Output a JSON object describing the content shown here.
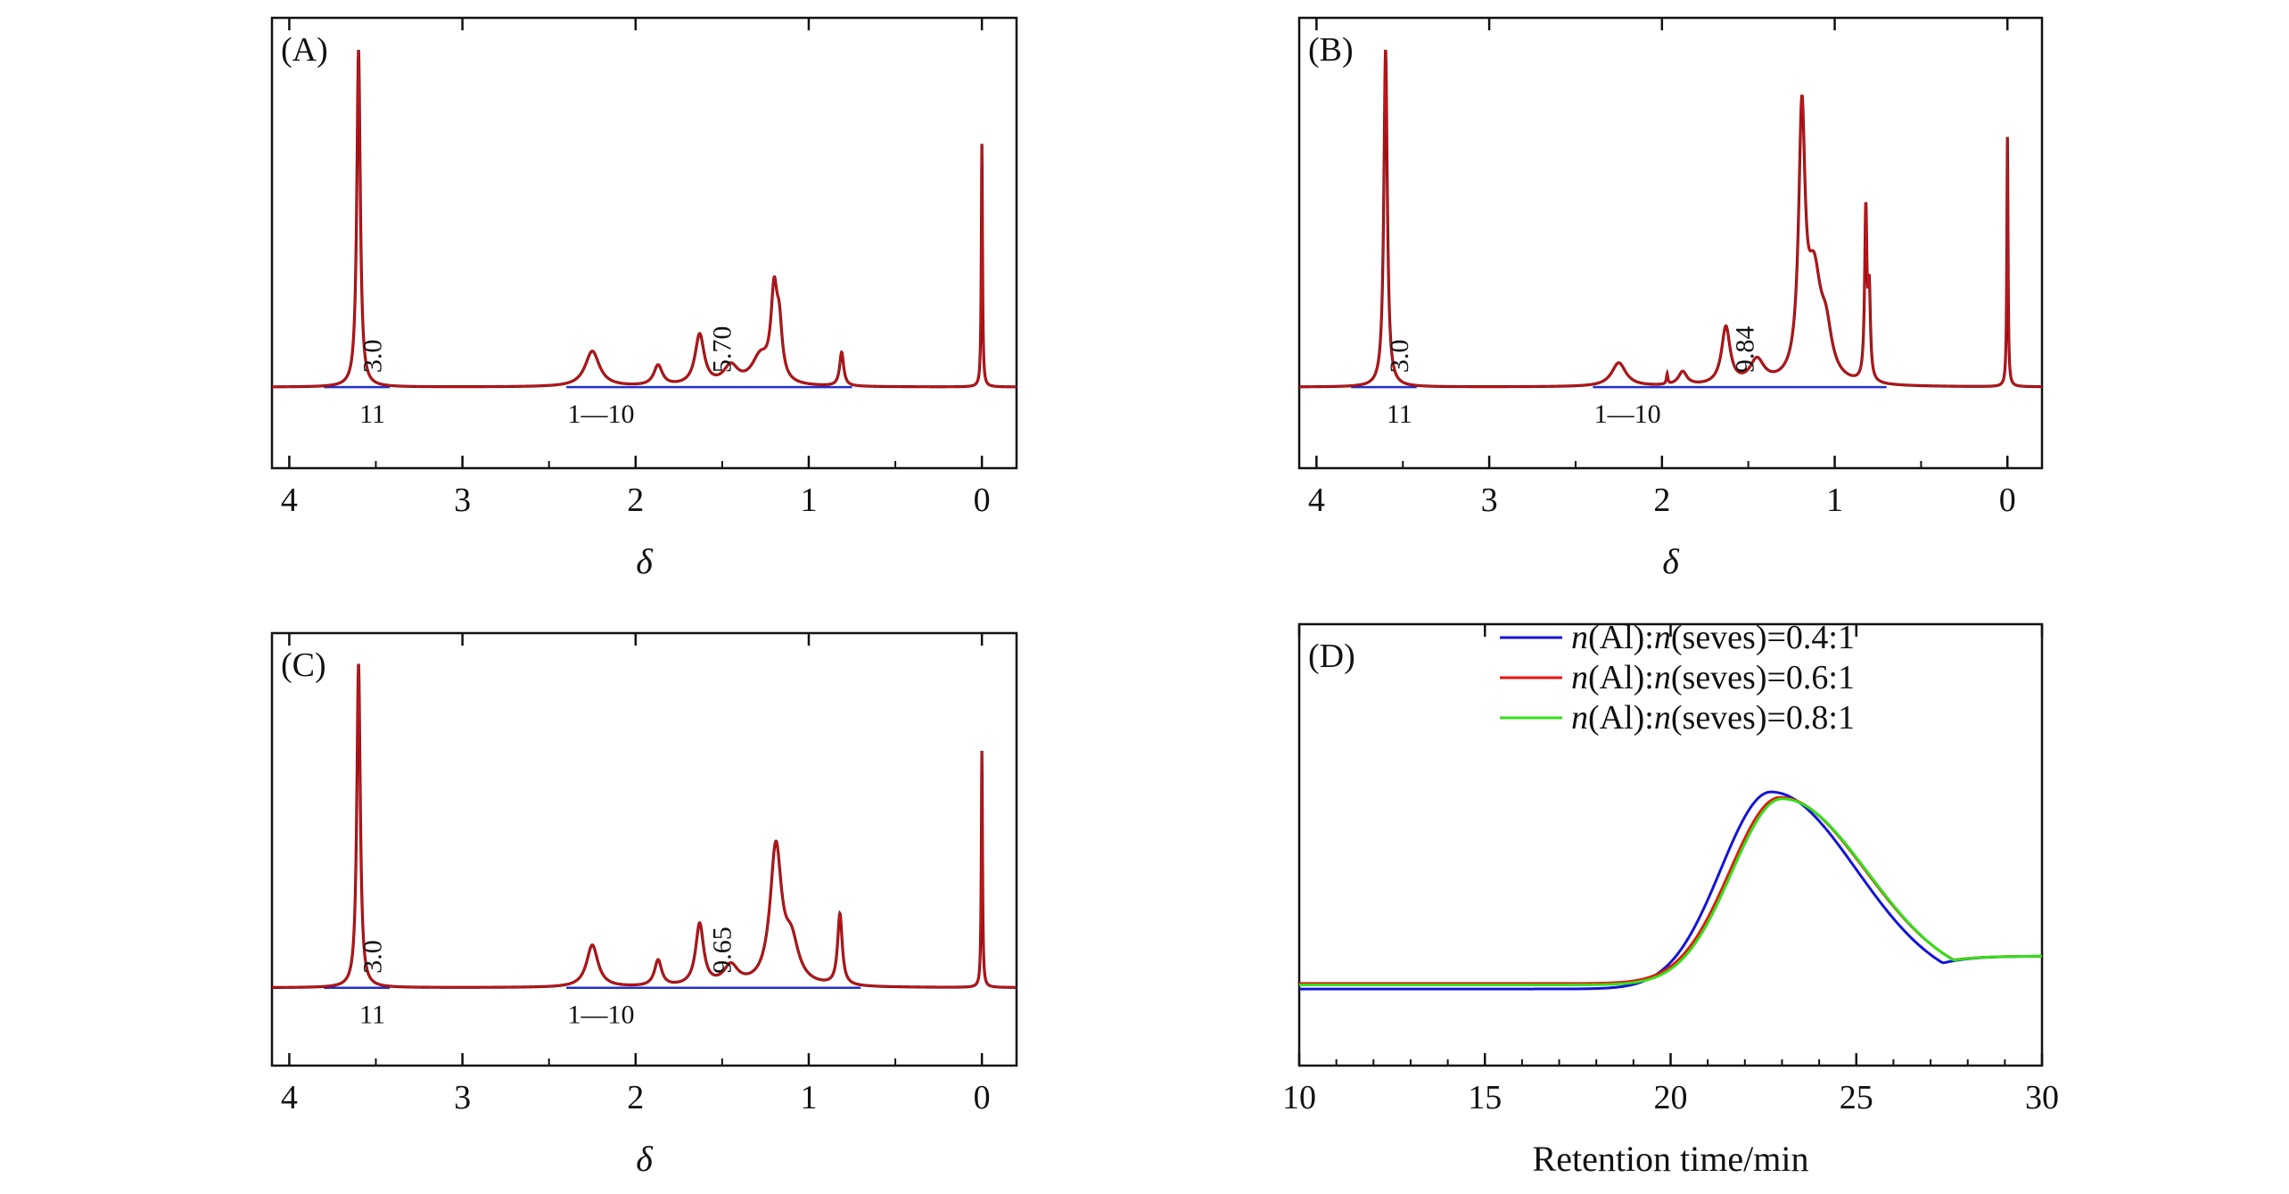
{
  "colors": {
    "spectrum": "#c0151b",
    "spectrum_dark": "#6b0a0a",
    "baseline": "#1f2fd1",
    "axis": "#111111",
    "series_04": "#1414d6",
    "series_06": "#e8140e",
    "series_08": "#33e01a"
  },
  "chart_data": [
    {
      "id": "A",
      "type": "line",
      "panel_label": "(A)",
      "xlabel": "δ",
      "xlim": [
        4.1,
        -0.2
      ],
      "xticks": [
        4,
        3,
        2,
        1,
        0
      ],
      "tick_labels": [
        "4",
        "3",
        "2",
        "1",
        "0"
      ],
      "annotations": [
        {
          "text": "3.0",
          "x": 3.47,
          "kind": "integral"
        },
        {
          "text": "5.70",
          "x": 1.45,
          "kind": "integral"
        },
        {
          "text": "11",
          "kind": "region",
          "x": 3.52
        },
        {
          "text": "1—10",
          "kind": "region",
          "x": 2.2
        }
      ],
      "peaks": [
        {
          "x": 3.6,
          "h": 1.0,
          "w": 0.012
        },
        {
          "x": 2.25,
          "h": 0.105,
          "w": 0.05
        },
        {
          "x": 1.87,
          "h": 0.06,
          "w": 0.03
        },
        {
          "x": 1.63,
          "h": 0.15,
          "w": 0.032
        },
        {
          "x": 1.45,
          "h": 0.055,
          "w": 0.05
        },
        {
          "x": 1.2,
          "h": 0.25,
          "w": 0.022
        },
        {
          "x": 1.17,
          "h": 0.14,
          "w": 0.02
        },
        {
          "x": 1.28,
          "h": 0.08,
          "w": 0.06
        },
        {
          "x": 0.81,
          "h": 0.1,
          "w": 0.014
        },
        {
          "x": 0.0,
          "h": 0.72,
          "w": 0.004
        }
      ],
      "integral_ranges": [
        [
          3.8,
          3.42
        ],
        [
          2.4,
          0.75
        ]
      ]
    },
    {
      "id": "B",
      "type": "line",
      "panel_label": "(B)",
      "xlabel": "δ",
      "xlim": [
        4.1,
        -0.2
      ],
      "xticks": [
        4,
        3,
        2,
        1,
        0
      ],
      "tick_labels": [
        "4",
        "3",
        "2",
        "1",
        "0"
      ],
      "annotations": [
        {
          "text": "3.0",
          "x": 3.47,
          "kind": "integral"
        },
        {
          "text": "9.84",
          "x": 1.47,
          "kind": "integral"
        },
        {
          "text": "11",
          "kind": "region",
          "x": 3.52
        },
        {
          "text": "1—10",
          "kind": "region",
          "x": 2.2
        }
      ],
      "peaks": [
        {
          "x": 3.6,
          "h": 1.0,
          "w": 0.012
        },
        {
          "x": 2.25,
          "h": 0.07,
          "w": 0.05
        },
        {
          "x": 1.97,
          "h": 0.03,
          "w": 0.005
        },
        {
          "x": 1.88,
          "h": 0.04,
          "w": 0.03
        },
        {
          "x": 1.63,
          "h": 0.17,
          "w": 0.03
        },
        {
          "x": 1.45,
          "h": 0.07,
          "w": 0.05
        },
        {
          "x": 1.19,
          "h": 0.75,
          "w": 0.022
        },
        {
          "x": 1.12,
          "h": 0.3,
          "w": 0.05
        },
        {
          "x": 1.05,
          "h": 0.12,
          "w": 0.04
        },
        {
          "x": 0.82,
          "h": 0.5,
          "w": 0.008
        },
        {
          "x": 0.8,
          "h": 0.25,
          "w": 0.008
        },
        {
          "x": 0.0,
          "h": 0.74,
          "w": 0.004
        }
      ],
      "integral_ranges": [
        [
          3.8,
          3.42
        ],
        [
          2.4,
          0.7
        ]
      ]
    },
    {
      "id": "C",
      "type": "line",
      "panel_label": "(C)",
      "xlabel": "δ",
      "xlim": [
        4.1,
        -0.2
      ],
      "xticks": [
        4,
        3,
        2,
        1,
        0
      ],
      "tick_labels": [
        "4",
        "3",
        "2",
        "1",
        "0"
      ],
      "annotations": [
        {
          "text": "3.0",
          "x": 3.47,
          "kind": "integral"
        },
        {
          "text": "9.65",
          "x": 1.45,
          "kind": "integral"
        },
        {
          "text": "11",
          "kind": "region",
          "x": 3.52
        },
        {
          "text": "1—10",
          "kind": "region",
          "x": 2.2
        }
      ],
      "peaks": [
        {
          "x": 3.6,
          "h": 1.0,
          "w": 0.012
        },
        {
          "x": 2.25,
          "h": 0.13,
          "w": 0.04
        },
        {
          "x": 1.87,
          "h": 0.08,
          "w": 0.025
        },
        {
          "x": 1.63,
          "h": 0.19,
          "w": 0.028
        },
        {
          "x": 1.45,
          "h": 0.06,
          "w": 0.05
        },
        {
          "x": 1.19,
          "h": 0.42,
          "w": 0.04
        },
        {
          "x": 1.1,
          "h": 0.12,
          "w": 0.05
        },
        {
          "x": 0.82,
          "h": 0.22,
          "w": 0.016
        },
        {
          "x": 0.0,
          "h": 0.73,
          "w": 0.004
        }
      ],
      "integral_ranges": [
        [
          3.8,
          3.42
        ],
        [
          2.4,
          0.7
        ]
      ]
    },
    {
      "id": "D",
      "type": "line",
      "panel_label": "(D)",
      "xlabel": "Retention time/min",
      "xlim": [
        10,
        30
      ],
      "xticks": [
        10,
        15,
        20,
        25,
        30
      ],
      "tick_labels": [
        "10",
        "15",
        "20",
        "25",
        "30"
      ],
      "legend_position": "top-right",
      "series": [
        {
          "name_italic": "n",
          "name_mid": "(Al):",
          "name_italic2": "n",
          "name_rest": "(seves)=0.4:1",
          "color_key": "series_04",
          "peak_x": 22.7,
          "baseline": 0.28,
          "peak_h": 1.0,
          "tail": 0.4
        },
        {
          "name_italic": "n",
          "name_mid": "(Al):",
          "name_italic2": "n",
          "name_rest": "(seves)=0.6:1",
          "color_key": "series_06",
          "peak_x": 22.95,
          "baseline": 0.3,
          "peak_h": 0.98,
          "tail": 0.4
        },
        {
          "name_italic": "n",
          "name_mid": "(Al):",
          "name_italic2": "n",
          "name_rest": "(seves)=0.8:1",
          "color_key": "series_08",
          "peak_x": 23.0,
          "baseline": 0.295,
          "peak_h": 0.975,
          "tail": 0.4
        }
      ]
    }
  ]
}
